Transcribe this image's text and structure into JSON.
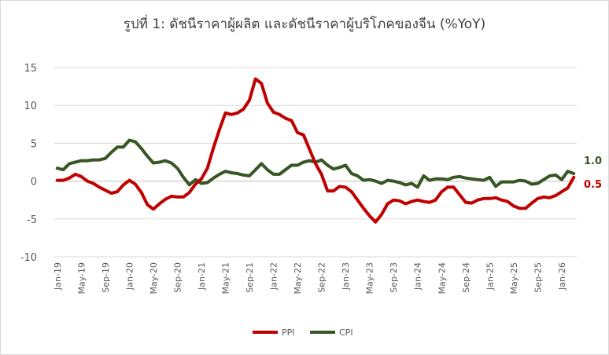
{
  "chart_data": {
    "type": "line",
    "title": "รูปที่ 1: ดัชนีราคาผู้ผลิต และดัชนีราคาผู้บริโภคของจีน (%YoY)",
    "xlabel": "",
    "ylabel": "",
    "ylim": [
      -10,
      15
    ],
    "yticks": [
      -10,
      -5,
      0,
      5,
      10,
      15
    ],
    "grid": true,
    "legend_position": "bottom",
    "x_tick_labels": [
      "Jan-19",
      "May-19",
      "Sep-19",
      "Jan-20",
      "May-20",
      "Sep-20",
      "Jan-21",
      "May-21",
      "Sep-21",
      "Jan-22",
      "May-22",
      "Sep-22",
      "Jan-23",
      "May-23",
      "Sep-23",
      "Jan-24",
      "May-24",
      "Sep-24",
      "Jan-25",
      "May-25",
      "Sep-25",
      "Jan-26"
    ],
    "x_start": "Jan-19",
    "x_end": "Mar-26",
    "series": [
      {
        "name": "PPI",
        "color": "#c00000",
        "end_label": "0.5",
        "values": [
          0.1,
          0.1,
          0.4,
          0.9,
          0.6,
          0.0,
          -0.3,
          -0.8,
          -1.2,
          -1.6,
          -1.4,
          -0.5,
          0.1,
          -0.4,
          -1.5,
          -3.1,
          -3.7,
          -3.0,
          -2.4,
          -2.0,
          -2.1,
          -2.1,
          -1.5,
          -0.4,
          0.3,
          1.7,
          4.4,
          6.8,
          9.0,
          8.8,
          9.0,
          9.5,
          10.7,
          13.5,
          12.9,
          10.3,
          9.1,
          8.8,
          8.3,
          8.0,
          6.4,
          6.1,
          4.2,
          2.3,
          0.9,
          -1.3,
          -1.3,
          -0.7,
          -0.8,
          -1.4,
          -2.5,
          -3.6,
          -4.6,
          -5.4,
          -4.4,
          -3.0,
          -2.5,
          -2.6,
          -3.0,
          -2.7,
          -2.5,
          -2.7,
          -2.8,
          -2.5,
          -1.4,
          -0.8,
          -0.8,
          -1.8,
          -2.8,
          -2.9,
          -2.5,
          -2.3,
          -2.3,
          -2.2,
          -2.5,
          -2.7,
          -3.3,
          -3.6,
          -3.6,
          -2.9,
          -2.3,
          -2.1,
          -2.2,
          -1.9,
          -1.4,
          -0.9,
          0.5
        ]
      },
      {
        "name": "CPI",
        "color": "#375623",
        "end_label": "1.0",
        "values": [
          1.7,
          1.5,
          2.3,
          2.5,
          2.7,
          2.7,
          2.8,
          2.8,
          3.0,
          3.8,
          4.5,
          4.5,
          5.4,
          5.2,
          4.3,
          3.3,
          2.4,
          2.5,
          2.7,
          2.4,
          1.7,
          0.5,
          -0.5,
          0.2,
          -0.3,
          -0.2,
          0.4,
          0.9,
          1.3,
          1.1,
          1.0,
          0.8,
          0.7,
          1.5,
          2.3,
          1.5,
          0.9,
          0.9,
          1.5,
          2.1,
          2.1,
          2.5,
          2.7,
          2.5,
          2.8,
          2.1,
          1.6,
          1.8,
          2.1,
          1.0,
          0.7,
          0.1,
          0.2,
          0.0,
          -0.3,
          0.1,
          0.0,
          -0.2,
          -0.5,
          -0.3,
          -0.8,
          0.7,
          0.1,
          0.3,
          0.3,
          0.2,
          0.5,
          0.6,
          0.4,
          0.3,
          0.2,
          0.1,
          0.5,
          -0.7,
          -0.1,
          -0.1,
          -0.1,
          0.1,
          0.0,
          -0.4,
          -0.3,
          0.2,
          0.7,
          0.8,
          0.2,
          1.3,
          1.0
        ]
      }
    ]
  }
}
